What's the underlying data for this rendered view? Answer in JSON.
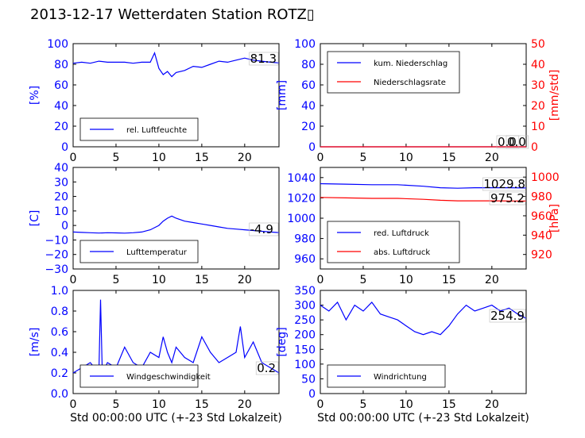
{
  "title": "2013-12-17 Wetterdaten Station ROTZ▯",
  "xlabel": "Std 00:00:00 UTC (+-23 Std Lokalzeit)",
  "colors": {
    "primary": "#0000ff",
    "secondary": "#ff0000",
    "axis": "#000000"
  },
  "chart_data": [
    {
      "type": "line",
      "ylabel": "[%]",
      "ylim": [
        0,
        100
      ],
      "yticks": [
        0,
        20,
        40,
        60,
        80,
        100
      ],
      "xlim": [
        0,
        24
      ],
      "xticks": [
        0,
        5,
        10,
        15,
        20
      ],
      "legend": [
        "rel. Luftfeuchte"
      ],
      "legend_loc": "lower-left",
      "current_value": "81.3",
      "series": [
        {
          "name": "rel. Luftfeuchte",
          "color": "#0000ff",
          "x": [
            0,
            1,
            2,
            3,
            4,
            5,
            6,
            7,
            8,
            9,
            9.5,
            10,
            10.5,
            11,
            11.5,
            12,
            13,
            14,
            15,
            16,
            17,
            18,
            19,
            20,
            21,
            22,
            23,
            24
          ],
          "y": [
            81,
            82,
            81,
            83,
            82,
            82,
            82,
            81,
            82,
            82,
            91,
            76,
            70,
            73,
            68,
            72,
            74,
            78,
            77,
            80,
            83,
            82,
            84,
            86,
            84,
            83,
            82,
            81.3
          ]
        }
      ]
    },
    {
      "type": "line",
      "ylabel": "[mm]",
      "y2label": "[mm/std]",
      "ylim": [
        0,
        100
      ],
      "yticks": [
        0,
        20,
        40,
        60,
        80,
        100
      ],
      "y2lim": [
        0,
        50
      ],
      "y2ticks": [
        0,
        10,
        20,
        30,
        40,
        50
      ],
      "xlim": [
        0,
        24
      ],
      "xticks": [
        0,
        5,
        10,
        15,
        20
      ],
      "legend": [
        "kum. Niederschlag",
        "Niederschlagsrate"
      ],
      "legend_loc": "upper-left",
      "current_values": [
        "0.0",
        "0.0"
      ],
      "series": [
        {
          "name": "kum. Niederschlag",
          "color": "#0000ff",
          "x": [
            0,
            24
          ],
          "y": [
            0,
            0
          ]
        },
        {
          "name": "Niederschlagsrate",
          "color": "#ff0000",
          "x": [
            0,
            24
          ],
          "y": [
            0,
            0
          ]
        }
      ]
    },
    {
      "type": "line",
      "ylabel": "[C]",
      "ylim": [
        -30,
        40
      ],
      "yticks": [
        -30,
        -20,
        -10,
        0,
        10,
        20,
        30,
        40
      ],
      "xlim": [
        0,
        24
      ],
      "xticks": [
        0,
        5,
        10,
        15,
        20
      ],
      "legend": [
        "Lufttemperatur"
      ],
      "legend_loc": "lower-left",
      "current_value": "-4.9",
      "series": [
        {
          "name": "Lufttemperatur",
          "color": "#0000ff",
          "x": [
            0,
            1,
            2,
            3,
            4,
            5,
            6,
            7,
            8,
            9,
            10,
            10.5,
            11,
            11.5,
            12,
            13,
            14,
            15,
            16,
            17,
            18,
            19,
            20,
            21,
            22,
            23,
            24
          ],
          "y": [
            -4.5,
            -4.8,
            -5.0,
            -5.2,
            -5.0,
            -5.1,
            -5.3,
            -5.0,
            -4.5,
            -3,
            0,
            3,
            5,
            6.5,
            5,
            3,
            2,
            1,
            0,
            -1,
            -2,
            -2.5,
            -3,
            -3.5,
            -4,
            -4.5,
            -4.9
          ]
        }
      ]
    },
    {
      "type": "line",
      "ylabel": "",
      "y2label": "[hPa]",
      "ylim": [
        950,
        1050
      ],
      "yticks": [
        960,
        980,
        1000,
        1020,
        1040
      ],
      "y2lim": [
        905,
        1010
      ],
      "y2ticks": [
        920,
        940,
        960,
        980,
        1000
      ],
      "xlim": [
        0,
        24
      ],
      "xticks": [
        0,
        5,
        10,
        15,
        20
      ],
      "legend": [
        "red. Luftdruck",
        "abs. Luftdruck"
      ],
      "legend_loc": "lower-left",
      "current_values": [
        "1029.8",
        "975.2"
      ],
      "series": [
        {
          "name": "red. Luftdruck",
          "color": "#0000ff",
          "x": [
            0,
            3,
            6,
            9,
            12,
            14,
            16,
            18,
            20,
            22,
            24
          ],
          "y": [
            1034,
            1033.5,
            1033,
            1033,
            1031.5,
            1030,
            1029.5,
            1030,
            1030,
            1030,
            1029.8
          ]
        },
        {
          "name": "abs. Luftdruck",
          "color": "#ff0000",
          "x": [
            0,
            3,
            6,
            9,
            12,
            14,
            16,
            18,
            20,
            22,
            24
          ],
          "y": [
            979,
            978.5,
            978,
            978,
            977,
            976,
            975.5,
            975.5,
            975.5,
            975.3,
            975.2
          ]
        }
      ]
    },
    {
      "type": "line",
      "ylabel": "[m/s]",
      "ylim": [
        0,
        1.0
      ],
      "yticks": [
        0.0,
        0.2,
        0.4,
        0.6,
        0.8,
        1.0
      ],
      "xlim": [
        0,
        24
      ],
      "xticks": [
        0,
        5,
        10,
        15,
        20
      ],
      "legend": [
        "Windgeschwindigkeit"
      ],
      "legend_loc": "lower-left",
      "current_value": "0.2",
      "series": [
        {
          "name": "Windgeschwindigkeit",
          "color": "#0000ff",
          "x": [
            0,
            1,
            2,
            3,
            3.2,
            3.4,
            4,
            5,
            6,
            7,
            8,
            9,
            10,
            10.5,
            11,
            11.5,
            12,
            13,
            14,
            15,
            16,
            17,
            18,
            19,
            19.5,
            20,
            21,
            22,
            23,
            24
          ],
          "y": [
            0.2,
            0.25,
            0.3,
            0.2,
            0.91,
            0.2,
            0.3,
            0.25,
            0.45,
            0.3,
            0.25,
            0.4,
            0.35,
            0.55,
            0.4,
            0.3,
            0.45,
            0.35,
            0.3,
            0.55,
            0.4,
            0.3,
            0.35,
            0.4,
            0.65,
            0.35,
            0.5,
            0.3,
            0.25,
            0.2
          ]
        }
      ]
    },
    {
      "type": "line",
      "ylabel": "[deg]",
      "ylim": [
        0,
        350
      ],
      "yticks": [
        0,
        50,
        100,
        150,
        200,
        250,
        300,
        350
      ],
      "xlim": [
        0,
        24
      ],
      "xticks": [
        0,
        5,
        10,
        15,
        20
      ],
      "legend": [
        "Windrichtung"
      ],
      "legend_loc": "lower-left",
      "current_value": "254.9",
      "series": [
        {
          "name": "Windrichtung",
          "color": "#0000ff",
          "x": [
            0,
            1,
            2,
            3,
            4,
            5,
            6,
            7,
            8,
            9,
            10,
            11,
            12,
            13,
            14,
            15,
            16,
            17,
            18,
            19,
            20,
            21,
            22,
            23,
            24
          ],
          "y": [
            300,
            280,
            310,
            250,
            300,
            280,
            310,
            270,
            260,
            250,
            230,
            210,
            200,
            210,
            200,
            230,
            270,
            300,
            280,
            290,
            300,
            280,
            290,
            270,
            254.9
          ]
        }
      ]
    }
  ]
}
